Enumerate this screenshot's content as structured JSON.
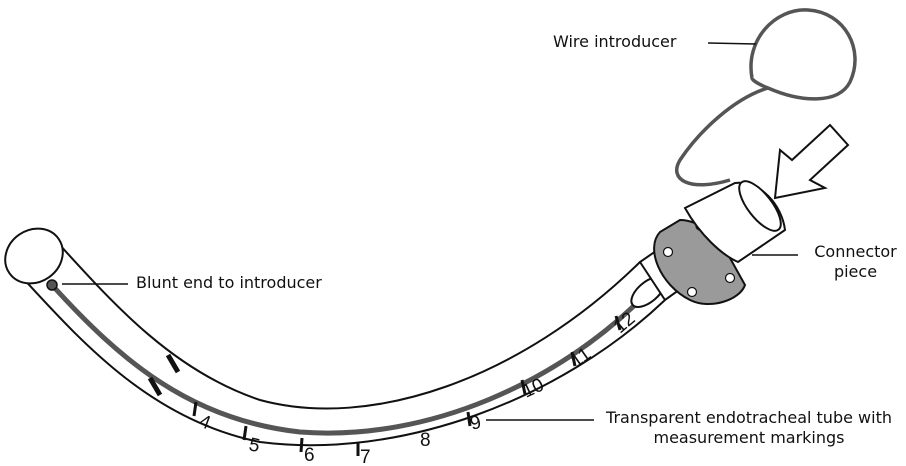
{
  "labels": {
    "wire_introducer": "Wire introducer",
    "blunt_end": "Blunt end to introducer",
    "connector_line1": "Connector",
    "connector_line2": "piece",
    "tube_line1": "Transparent endotracheal tube with",
    "tube_line2": "measurement markings"
  },
  "markings": [
    "4",
    "5",
    "6",
    "7",
    "8",
    "9",
    "10",
    "11",
    "12"
  ],
  "colors": {
    "stroke": "#111111",
    "wire": "#555555",
    "background": "#ffffff"
  }
}
